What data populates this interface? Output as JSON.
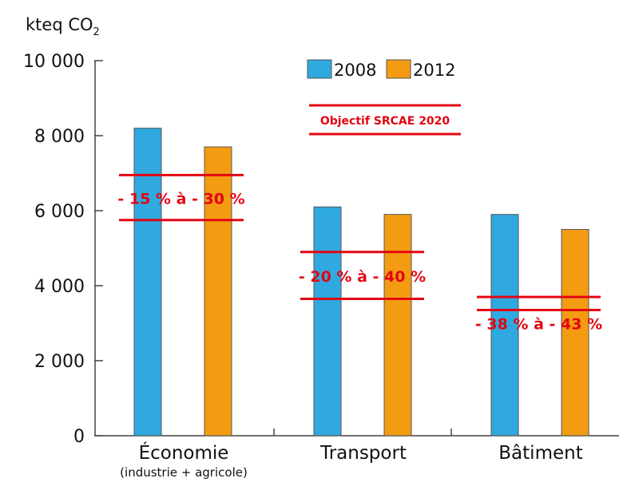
{
  "chart_data": {
    "type": "bar",
    "unit_label": "kteq CO",
    "unit_subscript": "2",
    "categories": [
      "Économie",
      "Transport",
      "Bâtiment"
    ],
    "category_sublabels": [
      "(industrie + agricole)",
      "",
      ""
    ],
    "series": [
      {
        "name": "2008",
        "values": [
          8200,
          6100,
          5900
        ]
      },
      {
        "name": "2012",
        "values": [
          7700,
          5900,
          5500
        ]
      }
    ],
    "ylim": [
      0,
      10000
    ],
    "yticks": [
      0,
      2000,
      4000,
      6000,
      8000,
      10000
    ],
    "ytick_labels": [
      "0",
      "2 000",
      "4 000",
      "6 000",
      "8 000",
      "10 000"
    ],
    "legend_position": "top-right",
    "targets_legend_label": "Objectif SRCAE 2020",
    "targets": [
      {
        "category": "Économie",
        "high": 6950,
        "low": 5750,
        "label": "- 15 % à - 30 %"
      },
      {
        "category": "Transport",
        "high": 4900,
        "low": 3650,
        "label": "- 20 % à - 40 %"
      },
      {
        "category": "Bâtiment",
        "high": 3700,
        "low": 3350,
        "label": "- 38 % à - 43 %"
      }
    ],
    "colors": {
      "2008": "#2fa9e0",
      "2012": "#f39c12",
      "target": "#e30613",
      "bar_stroke": "#555555"
    }
  }
}
